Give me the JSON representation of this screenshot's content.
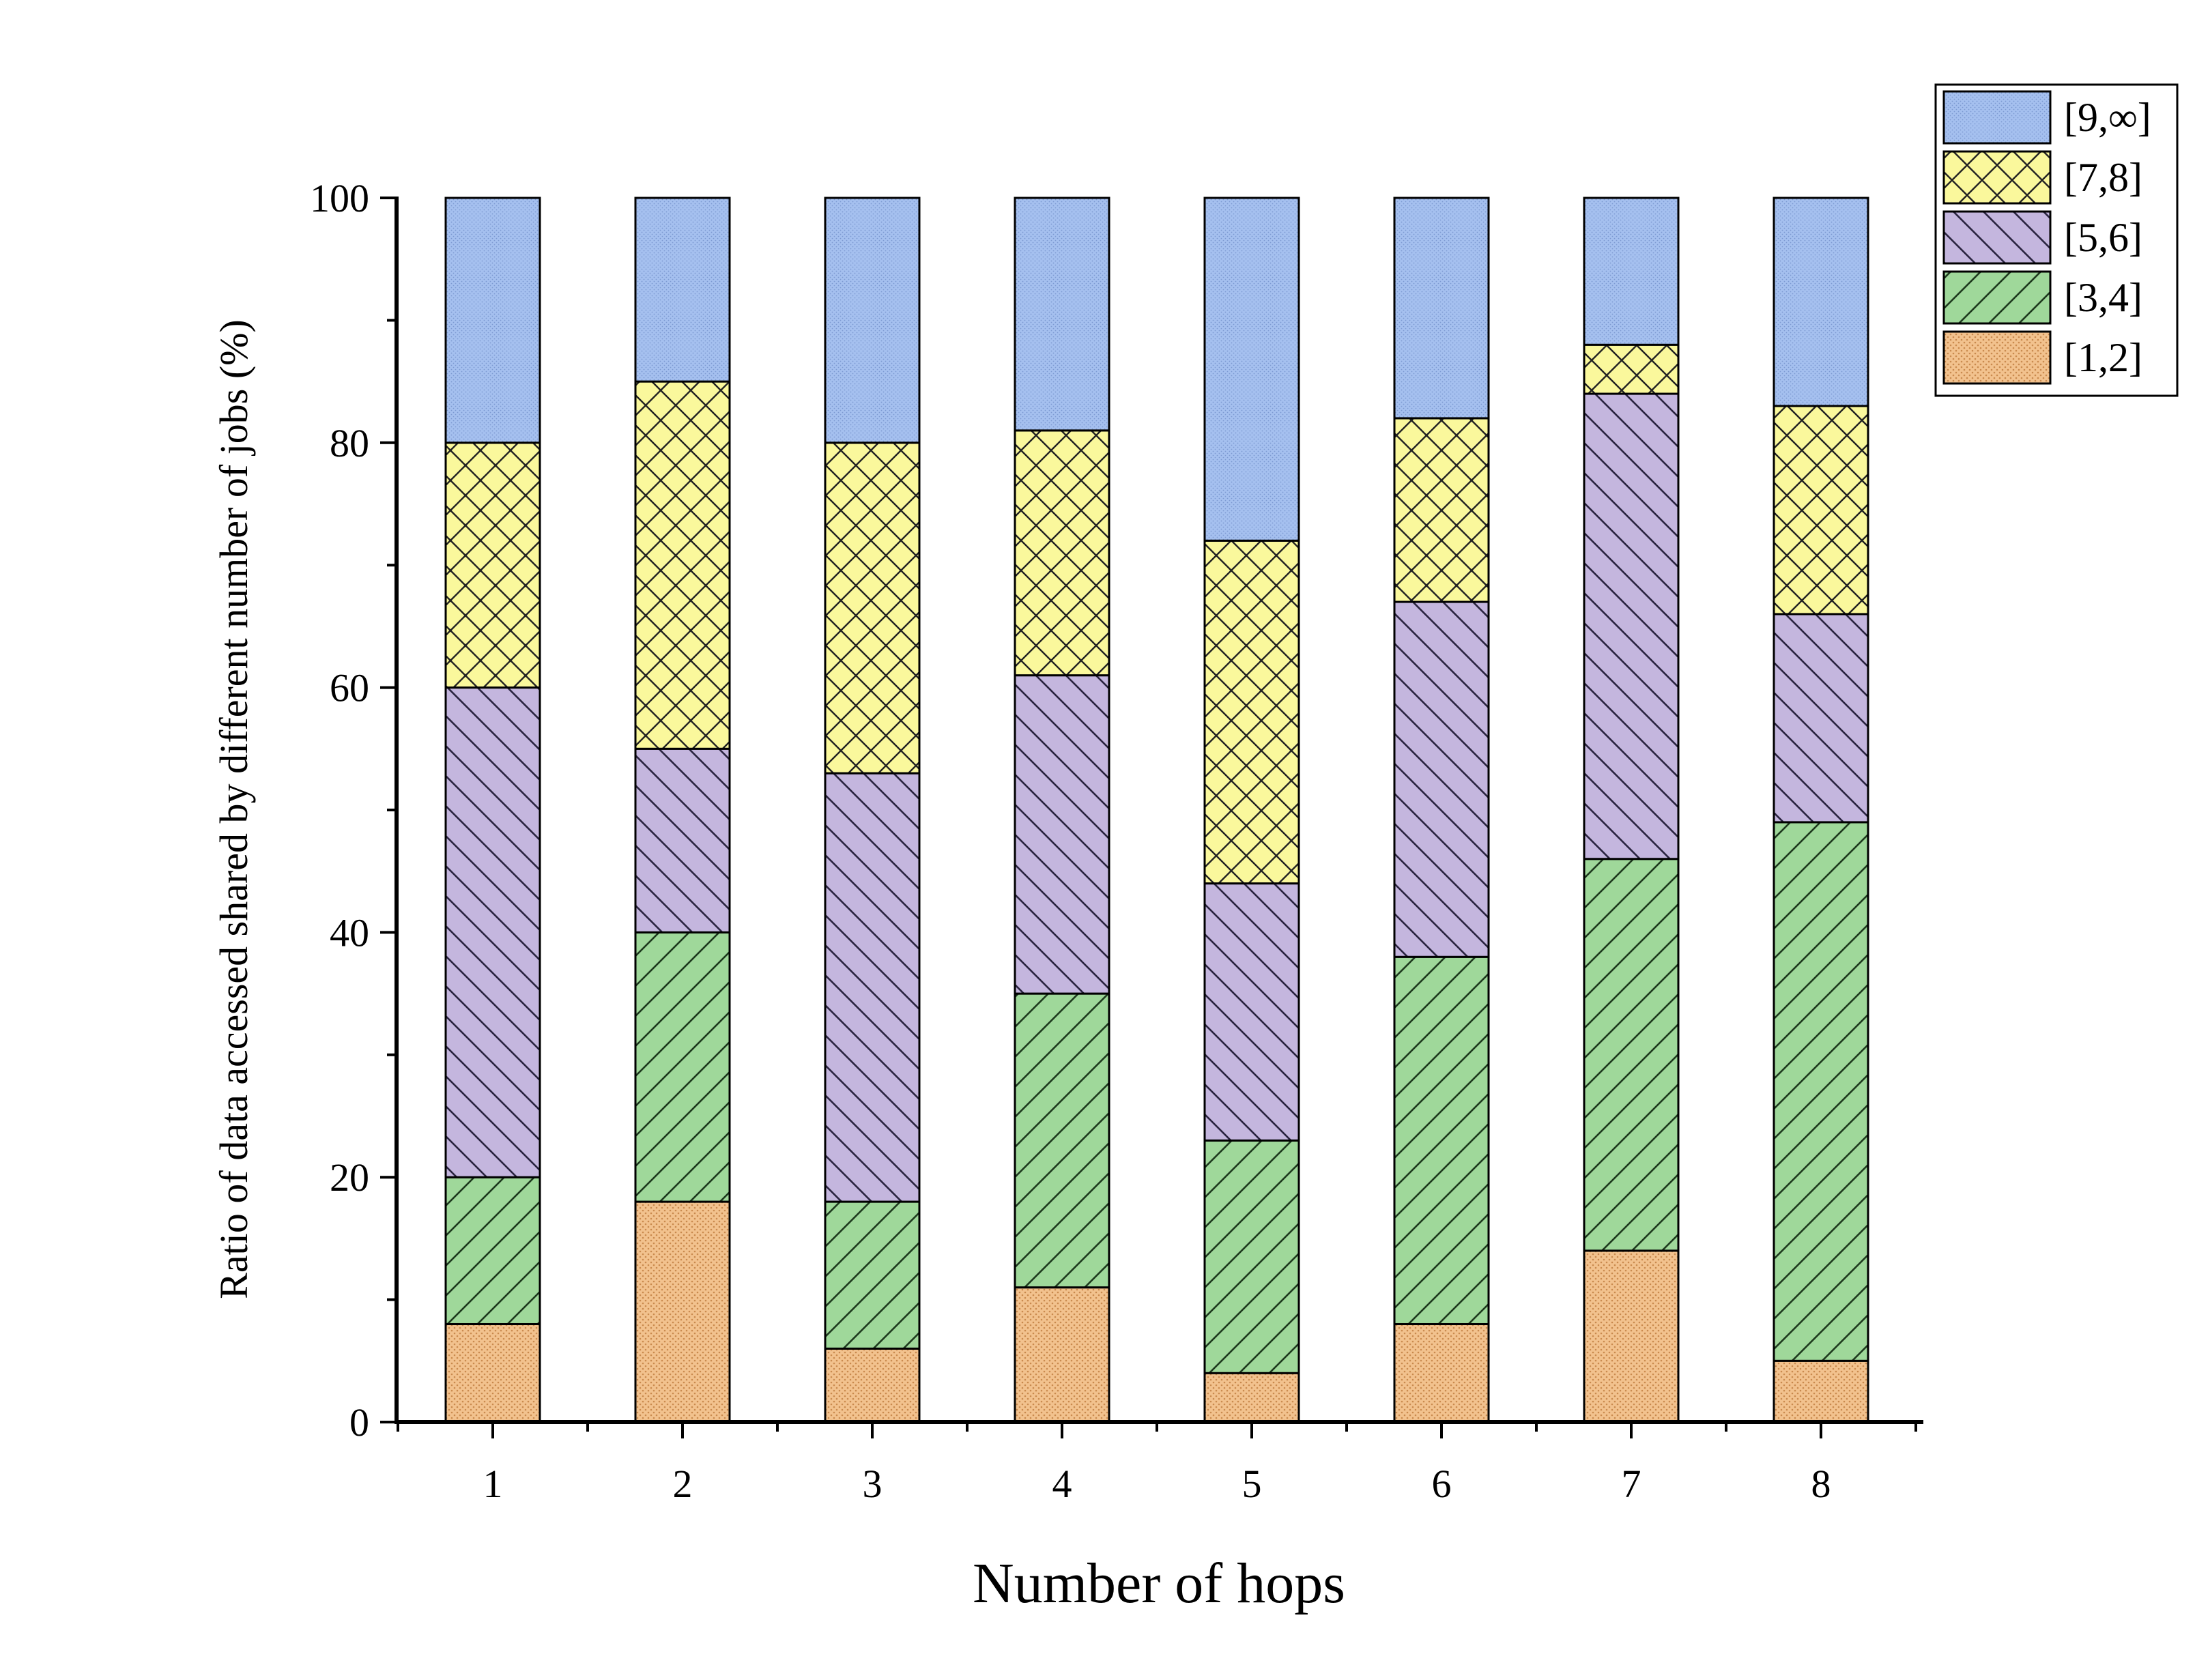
{
  "chart_data": {
    "type": "bar",
    "stacked": true,
    "title": "",
    "xlabel": "Number of hops",
    "ylabel": "Ratio of data accessed shared by different number of jobs (%)",
    "ylim": [
      0,
      100
    ],
    "yticks": [
      0,
      20,
      40,
      60,
      80,
      100
    ],
    "categories": [
      "1",
      "2",
      "3",
      "4",
      "5",
      "6",
      "7",
      "8"
    ],
    "series": [
      {
        "name": "[1,2]",
        "color": "#f2c28e",
        "pattern": "dots",
        "values": [
          8,
          18,
          6,
          11,
          4,
          8,
          14,
          5
        ]
      },
      {
        "name": "[3,4]",
        "color": "#9fd89a",
        "pattern": "slash",
        "values": [
          12,
          22,
          12,
          24,
          19,
          30,
          32,
          44
        ]
      },
      {
        "name": "[5,6]",
        "color": "#c4b6de",
        "pattern": "backslash",
        "values": [
          40,
          15,
          35,
          26,
          21,
          29,
          38,
          17
        ]
      },
      {
        "name": "[7,8]",
        "color": "#faf89c",
        "pattern": "cross",
        "values": [
          20,
          30,
          27,
          20,
          28,
          15,
          4,
          17
        ]
      },
      {
        "name": "[9,∞]",
        "color": "#a5c0ef",
        "pattern": "fine",
        "values": [
          20,
          15,
          20,
          19,
          28,
          18,
          12,
          17
        ]
      }
    ],
    "legend": "top-right, order top-to-bottom: [9,∞], [7,8], [5,6], [3,4], [1,2]",
    "grid": false
  }
}
